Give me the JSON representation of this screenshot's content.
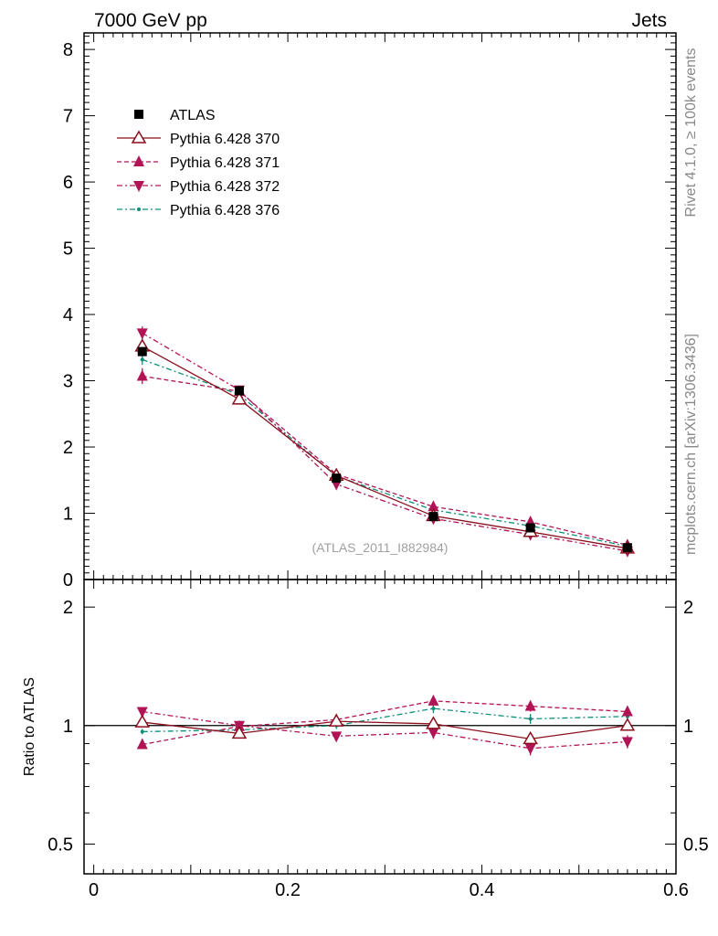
{
  "header": {
    "left_title": "7000 GeV pp",
    "right_title": "Jets"
  },
  "side_labels": {
    "rivet": "Rivet 4.1.0, ≥ 100k events",
    "mcplots": "mcplots.cern.ch [arXiv:1306.3436]"
  },
  "watermark": "(ATLAS_2011_I882984)",
  "colors": {
    "atlas": "#000000",
    "p370": "#8b0f1c",
    "p371": "#b01455",
    "p372": "#b01455",
    "p376": "#0e8f7a"
  },
  "chart_data": [
    {
      "type": "line",
      "panel": "main",
      "title": "",
      "xlabel": "",
      "ylabel": "",
      "xlim": [
        -0.01,
        0.6
      ],
      "ylim": [
        0,
        8.25
      ],
      "yticks": [
        0,
        1,
        2,
        3,
        4,
        5,
        6,
        7,
        8
      ],
      "ytick_labels": [
        "0",
        "1",
        "2",
        "3",
        "4",
        "5",
        "6",
        "7",
        "8"
      ],
      "legend_position": "top-left",
      "x": [
        0.05,
        0.15,
        0.25,
        0.35,
        0.45,
        0.55
      ],
      "series": [
        {
          "name": "ATLAS",
          "key": "atlas",
          "style": "square-markers",
          "values": [
            3.44,
            2.85,
            1.53,
            0.95,
            0.78,
            0.48
          ],
          "errors": [
            0.07,
            0.05,
            0.05,
            0.03,
            0.03,
            0.02
          ]
        },
        {
          "name": "Pythia 6.428 370",
          "key": "p370",
          "style": "solid-open-triangle",
          "values": [
            3.52,
            2.72,
            1.57,
            0.96,
            0.72,
            0.47
          ],
          "errors": [
            0.09,
            0.06,
            0.05,
            0.04,
            0.04,
            0.03
          ]
        },
        {
          "name": "Pythia 6.428 371",
          "key": "p371",
          "style": "dashed-triangle-up",
          "values": [
            3.07,
            2.84,
            1.59,
            1.1,
            0.87,
            0.52
          ],
          "errors": [
            0.12,
            0.06,
            0.05,
            0.04,
            0.04,
            0.03
          ]
        },
        {
          "name": "Pythia 6.428 372",
          "key": "p372",
          "style": "dashdot-triangle-down",
          "values": [
            3.72,
            2.86,
            1.44,
            0.92,
            0.68,
            0.43
          ],
          "errors": [
            0.1,
            0.06,
            0.05,
            0.04,
            0.04,
            0.03
          ]
        },
        {
          "name": "Pythia 6.428 376",
          "key": "p376",
          "style": "dashdot-dot",
          "values": [
            3.32,
            2.79,
            1.56,
            1.05,
            0.81,
            0.5
          ],
          "errors": [
            0.08,
            0.05,
            0.04,
            0.04,
            0.03,
            0.03
          ]
        }
      ]
    },
    {
      "type": "line",
      "panel": "ratio",
      "ylabel": "Ratio to ATLAS",
      "xlim": [
        -0.01,
        0.6
      ],
      "ylim": [
        0.42,
        2.35
      ],
      "yscale": "log",
      "yticks": [
        0.5,
        1,
        2
      ],
      "ytick_labels": [
        "0.5",
        "1",
        "2"
      ],
      "xticks": [
        0,
        0.2,
        0.4,
        0.6
      ],
      "xtick_labels": [
        "0",
        "0.2",
        "0.4",
        "0.6"
      ],
      "x": [
        0.05,
        0.15,
        0.25,
        0.35,
        0.45,
        0.55
      ],
      "series": [
        {
          "name": "Pythia 6.428 370",
          "key": "p370",
          "style": "solid-open-triangle",
          "values": [
            1.02,
            0.955,
            1.025,
            1.01,
            0.925,
            1.0
          ],
          "errors": [
            0.02,
            0.015,
            0.02,
            0.03,
            0.03,
            0.03
          ]
        },
        {
          "name": "Pythia 6.428 371",
          "key": "p371",
          "style": "dashed-triangle-up",
          "values": [
            0.895,
            0.995,
            1.035,
            1.155,
            1.12,
            1.085
          ],
          "errors": [
            0.02,
            0.015,
            0.02,
            0.035,
            0.035,
            0.035
          ]
        },
        {
          "name": "Pythia 6.428 372",
          "key": "p372",
          "style": "dashdot-triangle-down",
          "values": [
            1.085,
            1.0,
            0.94,
            0.96,
            0.875,
            0.91
          ],
          "errors": [
            0.02,
            0.015,
            0.02,
            0.035,
            0.035,
            0.035
          ]
        },
        {
          "name": "Pythia 6.428 376",
          "key": "p376",
          "style": "dashdot-dot",
          "values": [
            0.965,
            0.975,
            1.0,
            1.105,
            1.04,
            1.055
          ],
          "errors": [
            0.015,
            0.015,
            0.02,
            0.03,
            0.03,
            0.03
          ]
        }
      ]
    }
  ]
}
